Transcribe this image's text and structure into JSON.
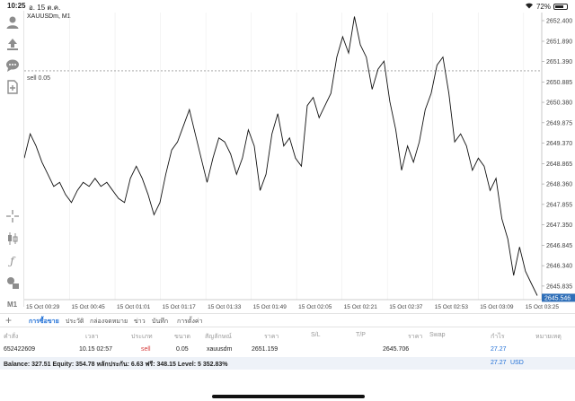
{
  "status_bar": {
    "time": "10:25",
    "date": "อ. 15 ต.ค.",
    "battery": "72%",
    "battery_level": 0.72
  },
  "toolbar": {
    "icons": [
      "account-icon",
      "trade-icon",
      "chat-icon",
      "new-order-icon",
      "crosshair-icon",
      "candlestick-icon",
      "indicator-icon",
      "objects-icon"
    ],
    "timeframe": "M1"
  },
  "chart": {
    "symbol": "XAUUSDm, M1",
    "sell_line_label": "sell 0.05",
    "current_price": "2645.546",
    "price_labels": [
      "2652.400",
      "2651.890",
      "2651.390",
      "2650.885",
      "2650.380",
      "2649.875",
      "2649.370",
      "2648.865",
      "2648.360",
      "2647.855",
      "2647.350",
      "2646.845",
      "2646.340",
      "2645.835"
    ],
    "time_labels": [
      "15 Oct 00:29",
      "15 Oct 00:45",
      "15 Oct 01:01",
      "15 Oct 01:17",
      "15 Oct 01:33",
      "15 Oct 01:49",
      "15 Oct 02:05",
      "15 Oct 02:21",
      "15 Oct 02:37",
      "15 Oct 02:53",
      "15 Oct 03:09",
      "15 Oct 03:25"
    ]
  },
  "chart_data": {
    "type": "line",
    "title": "XAUUSDm, M1",
    "xlabel": "",
    "ylabel": "",
    "ylim": [
      2645.5,
      2652.6
    ],
    "sell_price": 2651.159,
    "current_price": 2645.546,
    "grid": "vertical",
    "x": [
      "00:29",
      "00:31",
      "00:33",
      "00:35",
      "00:37",
      "00:39",
      "00:41",
      "00:43",
      "00:45",
      "00:47",
      "00:49",
      "00:51",
      "00:53",
      "00:55",
      "00:57",
      "00:59",
      "01:01",
      "01:03",
      "01:05",
      "01:07",
      "01:09",
      "01:11",
      "01:13",
      "01:15",
      "01:17",
      "01:19",
      "01:21",
      "01:23",
      "01:25",
      "01:27",
      "01:29",
      "01:31",
      "01:33",
      "01:35",
      "01:37",
      "01:39",
      "01:41",
      "01:43",
      "01:45",
      "01:47",
      "01:49",
      "01:51",
      "01:53",
      "01:55",
      "01:57",
      "01:59",
      "02:01",
      "02:03",
      "02:05",
      "02:07",
      "02:09",
      "02:11",
      "02:13",
      "02:15",
      "02:17",
      "02:19",
      "02:21",
      "02:23",
      "02:25",
      "02:27",
      "02:29",
      "02:31",
      "02:33",
      "02:35",
      "02:37",
      "02:39",
      "02:41",
      "02:43",
      "02:45",
      "02:47",
      "02:49",
      "02:51",
      "02:53",
      "02:55",
      "02:57",
      "02:59",
      "03:01",
      "03:03",
      "03:05",
      "03:07",
      "03:09",
      "03:11",
      "03:13",
      "03:15",
      "03:17",
      "03:19",
      "03:21",
      "03:23"
    ],
    "series": [
      {
        "values": [
          2649.0,
          2649.6,
          2649.3,
          2648.9,
          2648.6,
          2648.3,
          2648.4,
          2648.1,
          2647.9,
          2648.2,
          2648.4,
          2648.3,
          2648.5,
          2648.3,
          2648.4,
          2648.2,
          2648.0,
          2647.9,
          2648.5,
          2648.8,
          2648.5,
          2648.1,
          2647.6,
          2647.9,
          2648.6,
          2649.2,
          2649.4,
          2649.8,
          2650.2,
          2649.6,
          2649.0,
          2648.4,
          2649.0,
          2649.5,
          2649.4,
          2649.1,
          2648.6,
          2649.0,
          2649.7,
          2649.3,
          2648.2,
          2648.6,
          2649.6,
          2650.1,
          2649.3,
          2649.5,
          2649.0,
          2648.8,
          2650.3,
          2650.5,
          2650.0,
          2650.3,
          2650.6,
          2651.5,
          2652.0,
          2651.6,
          2652.5,
          2651.8,
          2651.5,
          2650.7,
          2651.2,
          2651.4,
          2650.4,
          2649.7,
          2648.7,
          2649.3,
          2648.9,
          2649.4,
          2650.2,
          2650.6,
          2651.3,
          2651.5,
          2650.6,
          2649.4,
          2649.6,
          2649.3,
          2648.7,
          2649.0,
          2648.8,
          2648.2,
          2648.5,
          2647.5,
          2647.0,
          2646.1,
          2646.8,
          2646.2,
          2645.9,
          2645.6
        ]
      }
    ]
  },
  "tabs": [
    {
      "label": "การซื้อขาย",
      "active": true
    },
    {
      "label": "ประวัติ",
      "active": false
    },
    {
      "label": "กล่องจดหมาย",
      "active": false
    },
    {
      "label": "ข่าว",
      "active": false
    },
    {
      "label": "บันทึก",
      "active": false
    },
    {
      "label": "การตั้งค่า",
      "active": false
    }
  ],
  "table": {
    "headers": {
      "order": "คำสั่ง",
      "time": "เวลา",
      "type": "ประเภท",
      "volume": "ขนาด",
      "symbol": "สัญลักษณ์",
      "price": "ราคา",
      "sl": "S/L",
      "tp": "T/P",
      "price2": "ราคา",
      "swap": "Swap",
      "profit": "กำไร",
      "comment": "หมายเหตุ"
    },
    "row": {
      "order": "652422609",
      "time": "10.15 02:57",
      "type": "sell",
      "volume": "0.05",
      "symbol": "xauusdm",
      "price": "2651.159",
      "price2": "2645.706",
      "profit": "27.27"
    }
  },
  "balance": {
    "text": "Balance: 327.51 Equity: 354.78 หลักประกัน: 6.63 ฟรี: 348.15 Level: 5 352.83%",
    "profit": "27.27",
    "currency": "USD"
  },
  "colors": {
    "accent": "#1f6fd6",
    "sell": "#d63c3c",
    "price_tag_bg": "#2f6fb8"
  }
}
